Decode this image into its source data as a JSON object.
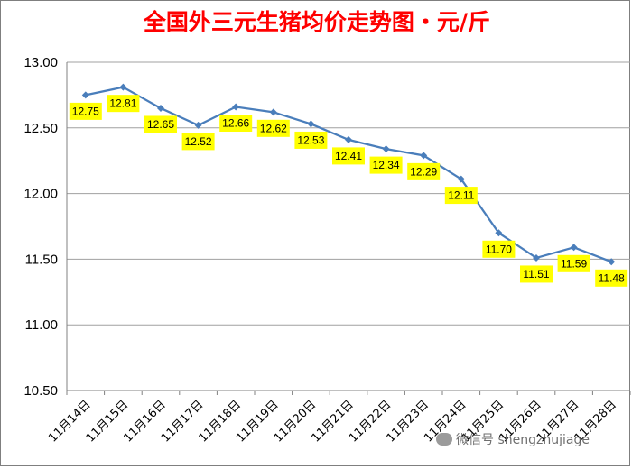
{
  "chart_data": {
    "type": "line",
    "title": "全国外三元生猪均价走势图・元/斤",
    "categories": [
      "11月14日",
      "11月15日",
      "11月16日",
      "11月17日",
      "11月18日",
      "11月19日",
      "11月20日",
      "11月21日",
      "11月22日",
      "11月23日",
      "11月24日",
      "11月25日",
      "11月26日",
      "11月27日",
      "11月28日"
    ],
    "series": [
      {
        "values": [
          12.75,
          12.81,
          12.65,
          12.52,
          12.66,
          12.62,
          12.53,
          12.41,
          12.34,
          12.29,
          12.11,
          11.7,
          11.51,
          11.59,
          11.48
        ]
      }
    ],
    "data_labels": [
      "12.75",
      "12.81",
      "12.65",
      "12.52",
      "12.66",
      "12.62",
      "12.53",
      "12.41",
      "12.34",
      "12.29",
      "12.11",
      "11.70",
      "11.51",
      "11.59",
      "11.48"
    ],
    "y_ticks": [
      "13.00",
      "12.50",
      "12.00",
      "11.50",
      "11.00",
      "10.50"
    ],
    "ylim": [
      10.5,
      13.0
    ],
    "grid": "horizontal",
    "legend": "none",
    "colors": {
      "line": "#4a7ebb",
      "title": "#ff0000",
      "label_bg": "#ffff00",
      "grid": "#a0a0a0"
    }
  },
  "watermark": {
    "text": "微信号 shengzhujiage",
    "icon": "wechat-icon"
  }
}
